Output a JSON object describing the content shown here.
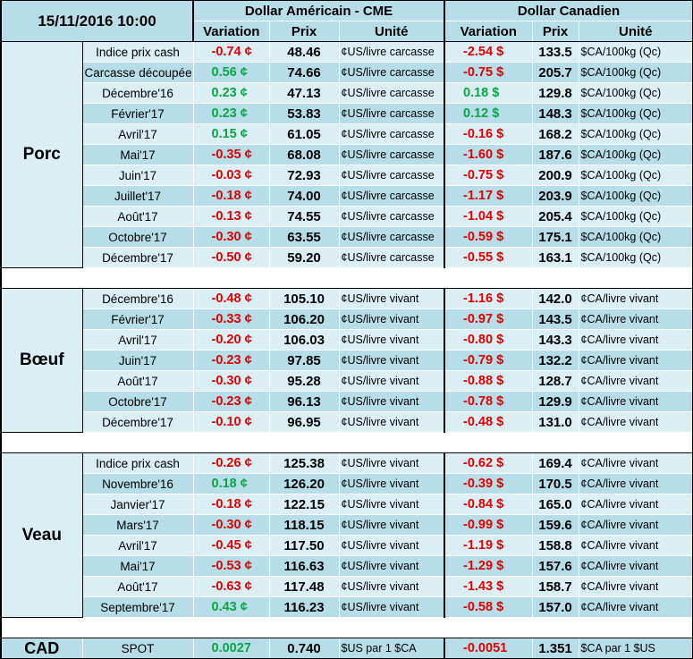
{
  "header": {
    "date": "15/11/2016 10:00",
    "usd_title": "Dollar Américain - CME",
    "cad_title": "Dollar Canadien",
    "col_variation": "Variation",
    "col_prix": "Prix",
    "col_unite": "Unité"
  },
  "groups": [
    {
      "name": "Porc",
      "rows": [
        {
          "label": "Indice prix cash",
          "usd_var": "-0.74 ¢",
          "usd_price": "48.46",
          "usd_unit": "¢US/livre carcasse",
          "cad_var": "-2.54 $",
          "cad_price": "133.5",
          "cad_unit": "$CA/100kg (Qc)"
        },
        {
          "label": "Carcasse découpée",
          "usd_var": "0.56 ¢",
          "usd_price": "74.66",
          "usd_unit": "¢US/livre carcasse",
          "cad_var": "-0.75 $",
          "cad_price": "205.7",
          "cad_unit": "$CA/100kg (Qc)"
        },
        {
          "label": "Décembre'16",
          "usd_var": "0.23 ¢",
          "usd_price": "47.13",
          "usd_unit": "¢US/livre carcasse",
          "cad_var": "0.18 $",
          "cad_price": "129.8",
          "cad_unit": "$CA/100kg (Qc)"
        },
        {
          "label": "Février'17",
          "usd_var": "0.23 ¢",
          "usd_price": "53.83",
          "usd_unit": "¢US/livre carcasse",
          "cad_var": "0.12 $",
          "cad_price": "148.3",
          "cad_unit": "$CA/100kg (Qc)"
        },
        {
          "label": "Avril'17",
          "usd_var": "0.15 ¢",
          "usd_price": "61.05",
          "usd_unit": "¢US/livre carcasse",
          "cad_var": "-0.16 $",
          "cad_price": "168.2",
          "cad_unit": "$CA/100kg (Qc)"
        },
        {
          "label": "Mai'17",
          "usd_var": "-0.35 ¢",
          "usd_price": "68.08",
          "usd_unit": "¢US/livre carcasse",
          "cad_var": "-1.60 $",
          "cad_price": "187.6",
          "cad_unit": "$CA/100kg (Qc)"
        },
        {
          "label": "Juin'17",
          "usd_var": "-0.03 ¢",
          "usd_price": "72.93",
          "usd_unit": "¢US/livre carcasse",
          "cad_var": "-0.75 $",
          "cad_price": "200.9",
          "cad_unit": "$CA/100kg (Qc)"
        },
        {
          "label": "Juillet'17",
          "usd_var": "-0.18 ¢",
          "usd_price": "74.00",
          "usd_unit": "¢US/livre carcasse",
          "cad_var": "-1.17 $",
          "cad_price": "203.9",
          "cad_unit": "$CA/100kg (Qc)"
        },
        {
          "label": "Août'17",
          "usd_var": "-0.13 ¢",
          "usd_price": "74.55",
          "usd_unit": "¢US/livre carcasse",
          "cad_var": "-1.04 $",
          "cad_price": "205.4",
          "cad_unit": "$CA/100kg (Qc)"
        },
        {
          "label": "Octobre'17",
          "usd_var": "-0.30 ¢",
          "usd_price": "63.55",
          "usd_unit": "¢US/livre carcasse",
          "cad_var": "-0.59 $",
          "cad_price": "175.1",
          "cad_unit": "$CA/100kg (Qc)"
        },
        {
          "label": "Décembre'17",
          "usd_var": "-0.50 ¢",
          "usd_price": "59.20",
          "usd_unit": "¢US/livre carcasse",
          "cad_var": "-0.55 $",
          "cad_price": "163.1",
          "cad_unit": "$CA/100kg (Qc)"
        }
      ]
    },
    {
      "name": "Bœuf",
      "rows": [
        {
          "label": "Décembre'16",
          "usd_var": "-0.48 ¢",
          "usd_price": "105.10",
          "usd_unit": "¢US/livre vivant",
          "cad_var": "-1.16 $",
          "cad_price": "142.0",
          "cad_unit": "¢CA/livre vivant"
        },
        {
          "label": "Février'17",
          "usd_var": "-0.33 ¢",
          "usd_price": "106.20",
          "usd_unit": "¢US/livre vivant",
          "cad_var": "-0.97 $",
          "cad_price": "143.5",
          "cad_unit": "¢CA/livre vivant"
        },
        {
          "label": "Avril'17",
          "usd_var": "-0.20 ¢",
          "usd_price": "106.03",
          "usd_unit": "¢US/livre vivant",
          "cad_var": "-0.80 $",
          "cad_price": "143.3",
          "cad_unit": "¢CA/livre vivant"
        },
        {
          "label": "Juin'17",
          "usd_var": "-0.23 ¢",
          "usd_price": "97.85",
          "usd_unit": "¢US/livre vivant",
          "cad_var": "-0.79 $",
          "cad_price": "132.2",
          "cad_unit": "¢CA/livre vivant"
        },
        {
          "label": "Août'17",
          "usd_var": "-0.30 ¢",
          "usd_price": "95.28",
          "usd_unit": "¢US/livre vivant",
          "cad_var": "-0.88 $",
          "cad_price": "128.7",
          "cad_unit": "¢CA/livre vivant"
        },
        {
          "label": "Octobre'17",
          "usd_var": "-0.23 ¢",
          "usd_price": "96.13",
          "usd_unit": "¢US/livre vivant",
          "cad_var": "-0.78 $",
          "cad_price": "129.9",
          "cad_unit": "¢CA/livre vivant"
        },
        {
          "label": "Décembre'17",
          "usd_var": "-0.10 ¢",
          "usd_price": "96.95",
          "usd_unit": "¢US/livre vivant",
          "cad_var": "-0.48 $",
          "cad_price": "131.0",
          "cad_unit": "¢CA/livre vivant"
        }
      ]
    },
    {
      "name": "Veau",
      "rows": [
        {
          "label": "Indice prix cash",
          "usd_var": "-0.26 ¢",
          "usd_price": "125.38",
          "usd_unit": "¢US/livre vivant",
          "cad_var": "-0.62 $",
          "cad_price": "169.4",
          "cad_unit": "¢CA/livre vivant"
        },
        {
          "label": "Novembre'16",
          "usd_var": "0.18 ¢",
          "usd_price": "126.20",
          "usd_unit": "¢US/livre vivant",
          "cad_var": "-0.39 $",
          "cad_price": "170.5",
          "cad_unit": "¢CA/livre vivant"
        },
        {
          "label": "Janvier'17",
          "usd_var": "-0.18 ¢",
          "usd_price": "122.15",
          "usd_unit": "¢US/livre vivant",
          "cad_var": "-0.84 $",
          "cad_price": "165.0",
          "cad_unit": "¢CA/livre vivant"
        },
        {
          "label": "Mars'17",
          "usd_var": "-0.30 ¢",
          "usd_price": "118.15",
          "usd_unit": "¢US/livre vivant",
          "cad_var": "-0.99 $",
          "cad_price": "159.6",
          "cad_unit": "¢CA/livre vivant"
        },
        {
          "label": "Avril'17",
          "usd_var": "-0.45 ¢",
          "usd_price": "117.50",
          "usd_unit": "¢US/livre vivant",
          "cad_var": "-1.19 $",
          "cad_price": "158.8",
          "cad_unit": "¢CA/livre vivant"
        },
        {
          "label": "Mai'17",
          "usd_var": "-0.53 ¢",
          "usd_price": "116.63",
          "usd_unit": "¢US/livre vivant",
          "cad_var": "-1.29 $",
          "cad_price": "157.6",
          "cad_unit": "¢CA/livre vivant"
        },
        {
          "label": "Août'17",
          "usd_var": "-0.63 ¢",
          "usd_price": "117.48",
          "usd_unit": "¢US/livre vivant",
          "cad_var": "-1.43 $",
          "cad_price": "158.7",
          "cad_unit": "¢CA/livre vivant"
        },
        {
          "label": "Septembre'17",
          "usd_var": "0.43 ¢",
          "usd_price": "116.23",
          "usd_unit": "¢US/livre vivant",
          "cad_var": "-0.58 $",
          "cad_price": "157.0",
          "cad_unit": "¢CA/livre vivant"
        }
      ]
    }
  ],
  "cad_row": {
    "name": "CAD",
    "label": "SPOT",
    "usd_var": "0.0027",
    "usd_price": "0.740",
    "usd_unit": "$US par 1 $CA",
    "cad_var": "-0.0051",
    "cad_price": "1.351",
    "cad_unit": "$CA par 1 $US"
  },
  "colors": {
    "negative": "#e00000",
    "positive": "#0aa646",
    "header_bg": "#b7dee8",
    "row_light": "#dbeef4",
    "row_dark": "#b7dee8"
  }
}
